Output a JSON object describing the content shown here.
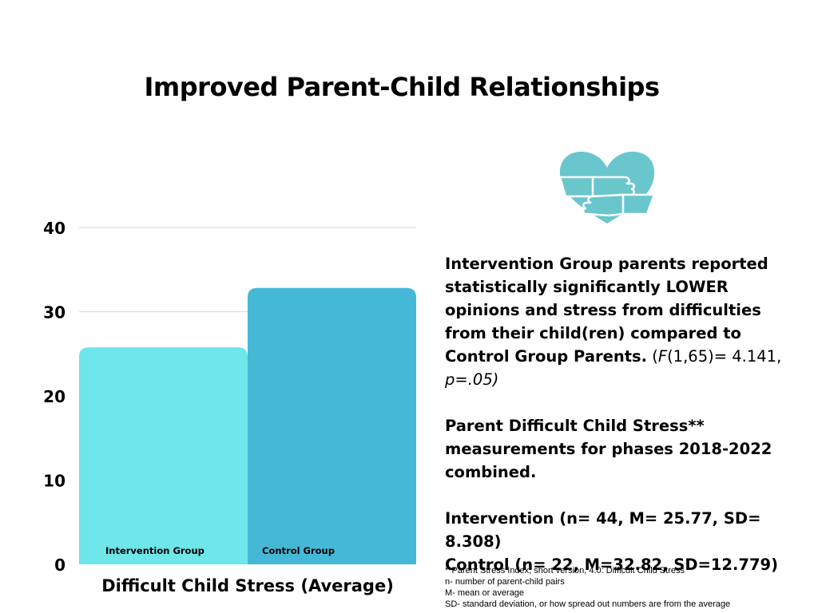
{
  "title": "Improved Parent-Child Relationships",
  "chart_data": {
    "type": "bar",
    "categories": [
      "Intervention Group",
      "Control Group"
    ],
    "values": [
      25.77,
      32.82
    ],
    "xlabel": "Difficult Child Stress (Average)",
    "ylabel": "",
    "ylim": [
      0,
      40
    ],
    "yticks": [
      0,
      10,
      20,
      30,
      40
    ],
    "grid": true,
    "colors": [
      "#6ee6ea",
      "#45b8d6"
    ]
  },
  "icon": {
    "name": "heart-hug-icon",
    "color": "#69c6cc"
  },
  "summary": {
    "lead": "Intervention Group parents reported statistically significantly LOWER opinions and stress from difficulties from their child(ren) compared to Control Group Parents.",
    "stat_open": " (",
    "stat_f": "F",
    "stat_mid": "(1,65)= 4.141, ",
    "stat_p": "p=.05)",
    "measure": "Parent Difficult Child Stress** measurements for phases 2018-2022 combined.",
    "intervention": "Intervention (n= 44, M= 25.77, SD= 8.308)",
    "control": "Control (n= 22, M=32.82, SD=12.779)"
  },
  "footnotes": [
    "**Parent Stress Index, short version, 4.0: Difficult Child Stress",
    "n- number of parent-child pairs",
    "M- mean or average",
    "SD- standard deviation, or how spread out numbers are from the average"
  ]
}
